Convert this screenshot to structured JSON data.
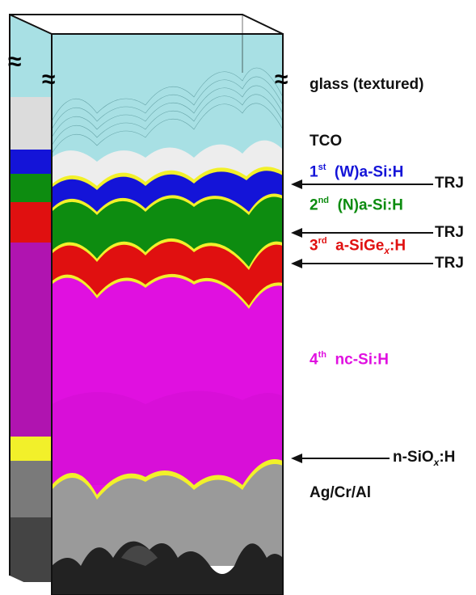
{
  "labels": {
    "glass": "glass (textured)",
    "tco": "TCO",
    "layer1": {
      "ord": "1",
      "sup": "st",
      "name": "(W)a-Si:H"
    },
    "layer2": {
      "ord": "2",
      "sup": "nd",
      "name": "(N)a-Si:H"
    },
    "layer3": {
      "ord": "3",
      "sup": "rd",
      "name_pre": "a-SiGe",
      "name_sub": "x",
      "name_post": ":H"
    },
    "layer4": {
      "ord": "4",
      "sup": "th",
      "name": "nc-Si:H"
    },
    "trj": "TRJ",
    "nsiox": {
      "pre": "n-SiO",
      "sub": "x",
      "post": ":H"
    },
    "backcontact": "Ag/Cr/Al",
    "break_mark": "≈"
  },
  "colors": {
    "glass": "#a8e0e4",
    "tco": "#ededed",
    "layer1": "#1414d8",
    "layer2": "#0d8c10",
    "layer3": "#e01010",
    "layer4": "#e010e0",
    "interlayer": "#f2f02a",
    "nsiox": "#9a9a9a",
    "metal": "#222222"
  }
}
